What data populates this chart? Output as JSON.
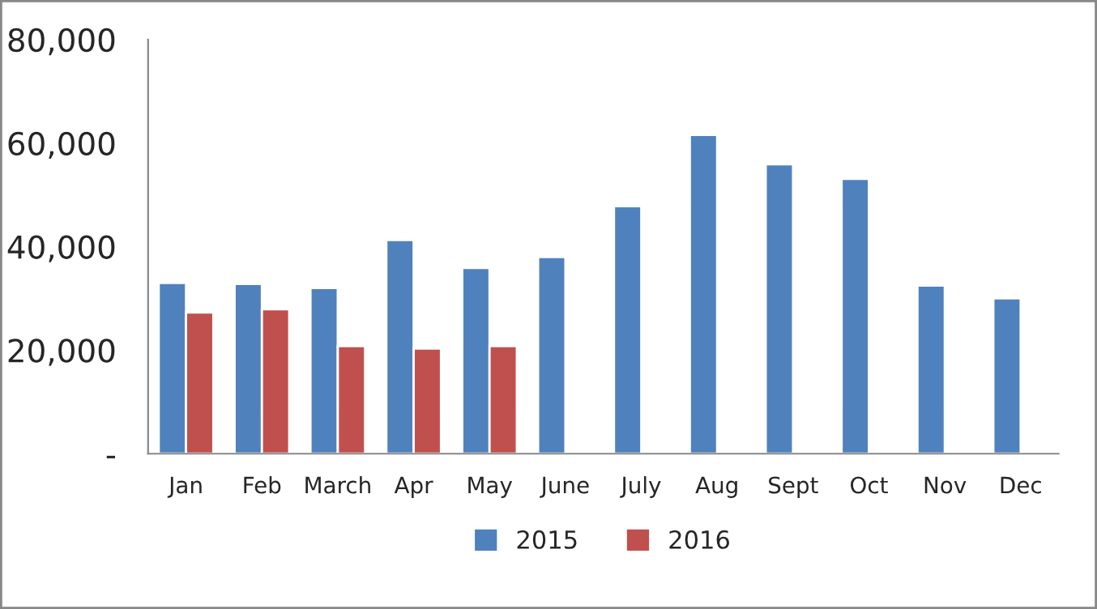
{
  "chart_data": {
    "type": "bar",
    "categories": [
      "Jan",
      "Feb",
      "March",
      "Apr",
      "May",
      "June",
      "July",
      "Aug",
      "Sept",
      "Oct",
      "Nov",
      "Dec"
    ],
    "series": [
      {
        "name": "2015",
        "color": "#4f81bd",
        "values": [
          33000,
          32800,
          32000,
          41300,
          35900,
          38000,
          47800,
          61600,
          55900,
          53100,
          32500,
          30000
        ]
      },
      {
        "name": "2016",
        "color": "#c0504d",
        "values": [
          27300,
          27900,
          20800,
          20300,
          20800,
          null,
          null,
          null,
          null,
          null,
          null,
          null
        ]
      }
    ],
    "ylim": [
      0,
      80000
    ],
    "yticks": [
      {
        "value": 0,
        "label": "-"
      },
      {
        "value": 20000,
        "label": "20,000"
      },
      {
        "value": 40000,
        "label": "40,000"
      },
      {
        "value": 60000,
        "label": "60,000"
      },
      {
        "value": 80000,
        "label": "80,000"
      }
    ],
    "grid": false,
    "legend": "bottom"
  }
}
